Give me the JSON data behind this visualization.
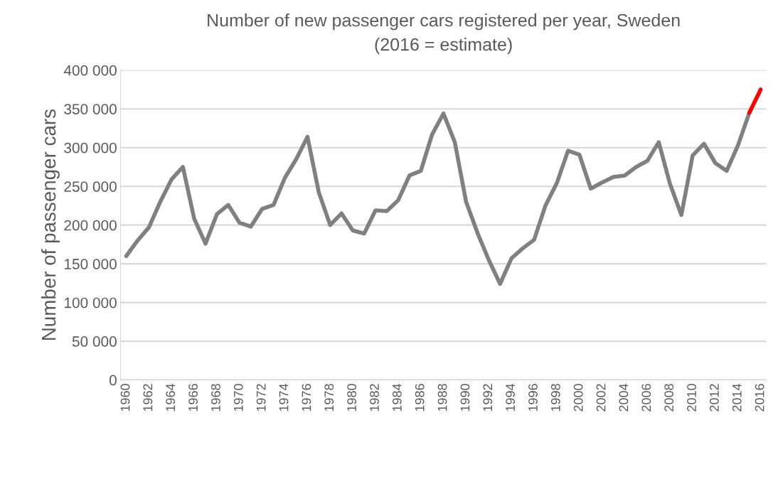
{
  "chart_data": {
    "type": "line",
    "title": "Number of new passenger cars registered per year, Sweden",
    "subtitle": "(2016 = estimate)",
    "ylabel": "Number of passenger cars",
    "categories": [
      "1960",
      null,
      "1962",
      null,
      "1964",
      null,
      "1966",
      null,
      "1968",
      null,
      "1970",
      null,
      "1972",
      null,
      "1974",
      null,
      "1976",
      null,
      "1978",
      null,
      "1980",
      null,
      "1982",
      null,
      "1984",
      null,
      "1986",
      null,
      "1988",
      null,
      "1990",
      null,
      "1992",
      null,
      "1994",
      null,
      "1996",
      null,
      "1998",
      null,
      "2000",
      null,
      "2002",
      null,
      "2004",
      null,
      "2006",
      null,
      "2008",
      null,
      "2010",
      null,
      "2012",
      null,
      "2014",
      null,
      "2016"
    ],
    "series": [
      {
        "color": "#808080",
        "values": [
          160000,
          180000,
          197000,
          230000,
          259000,
          275000,
          208000,
          176000,
          214000,
          226000,
          203000,
          198000,
          221000,
          226000,
          261000,
          285000,
          314000,
          242000,
          200000,
          215000,
          193000,
          189000,
          219000,
          218000,
          232000,
          264000,
          270000,
          317000,
          344000,
          307000,
          230000,
          190000,
          155000,
          124000,
          157000,
          170000,
          181000,
          225000,
          254000,
          296000,
          291000,
          247000,
          255000,
          262000,
          264000,
          275000,
          283000,
          307000,
          253000,
          213000,
          290000,
          305000,
          280000,
          270000,
          303000,
          345000,
          null
        ]
      },
      {
        "color": "#ff0000",
        "values": [
          null,
          null,
          null,
          null,
          null,
          null,
          null,
          null,
          null,
          null,
          null,
          null,
          null,
          null,
          null,
          null,
          null,
          null,
          null,
          null,
          null,
          null,
          null,
          null,
          null,
          null,
          null,
          null,
          null,
          null,
          null,
          null,
          null,
          null,
          null,
          null,
          null,
          null,
          null,
          null,
          null,
          null,
          null,
          null,
          null,
          null,
          null,
          null,
          null,
          null,
          null,
          null,
          null,
          null,
          null,
          345000,
          375000
        ]
      }
    ],
    "ylim": [
      0,
      400000
    ],
    "yticks": [
      0,
      {
        "value": 50000,
        "label": "50 000"
      },
      {
        "value": 100000,
        "label": "100 000"
      },
      {
        "value": 150000,
        "label": "150 000"
      },
      {
        "value": 200000,
        "label": "200 000"
      },
      {
        "value": 250000,
        "label": "250 000"
      },
      {
        "value": 300000,
        "label": "300 000"
      },
      {
        "value": 350000,
        "label": "350 000"
      },
      {
        "value": 400000,
        "label": "400 000"
      }
    ],
    "grid": "y",
    "line_style": "solid"
  }
}
